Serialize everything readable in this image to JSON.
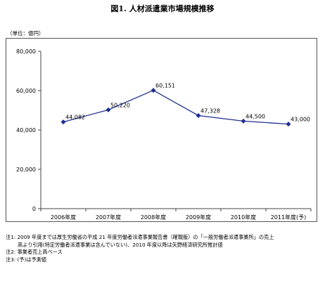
{
  "title": "図1. 人材派遣業市場規模推移",
  "unit_label": "（単位：億円）",
  "chart_data": {
    "type": "line",
    "categories": [
      "2006年度",
      "2007年度",
      "2008年度",
      "2009年度",
      "2010年度",
      "2011年度(予)"
    ],
    "series": [
      {
        "values": [
          44082,
          50220,
          60151,
          47328,
          44500,
          43000
        ]
      }
    ],
    "data_labels": [
      "44,082",
      "50,220",
      "60,151",
      "47,328",
      "44,500",
      "43,000"
    ],
    "yticks": [
      "0",
      "20,000",
      "40,000",
      "60,000",
      "80,000"
    ],
    "ylim": [
      0,
      80000
    ],
    "title": "",
    "xlabel": "",
    "ylabel": "",
    "color": "#1f2f8f",
    "grid": false,
    "legend": "none"
  },
  "notes": [
    "注1: 2009 年度までは厚生労働省の平成 21 年度労働者派遣事業報告書（確報版）の「一般労働者派遣事業所」の売上",
    "高より引用(特定労働者派遣事業は含んでいない)、2010 年度以降は矢野経済研究所推計値",
    "注2: 事業者売上高ベース",
    "注3: (予)は予測値"
  ]
}
